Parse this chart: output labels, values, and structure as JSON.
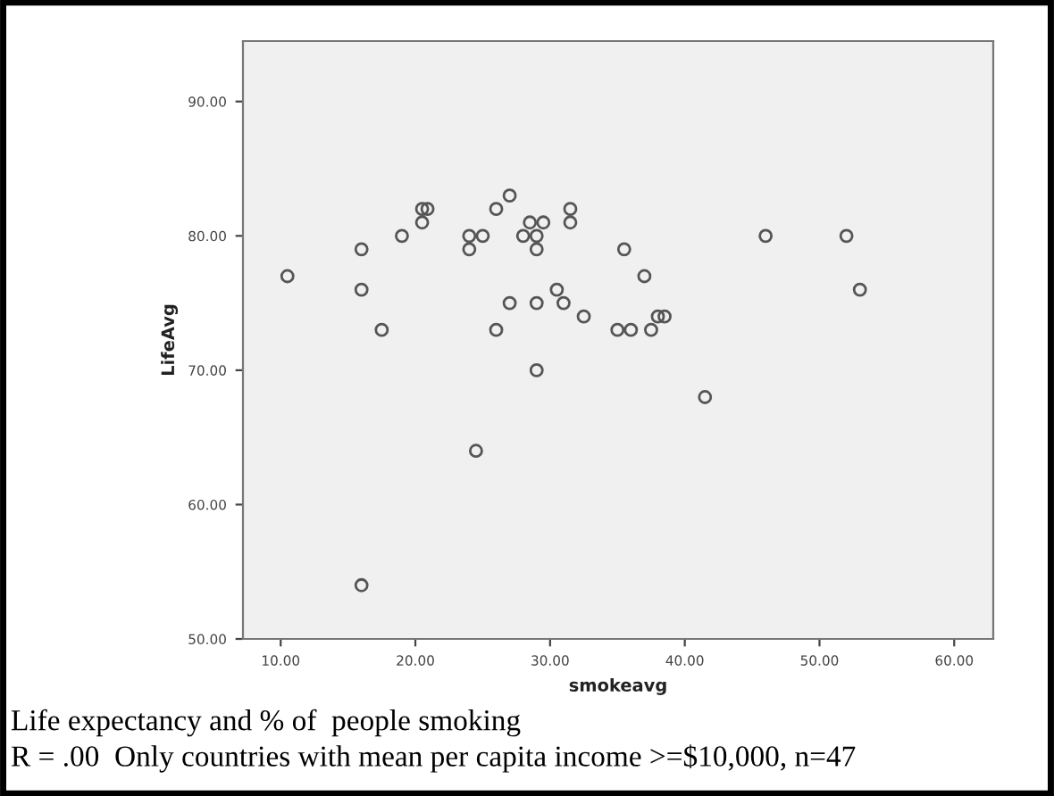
{
  "chart_data": {
    "type": "scatter",
    "xlabel": "smokeavg",
    "ylabel": "LifeAvg",
    "xlim": [
      7.2,
      62.9
    ],
    "xticks": [
      {
        "value": 10,
        "label": "10.00"
      },
      {
        "value": 20,
        "label": "20.00"
      },
      {
        "value": 30,
        "label": "30.00"
      },
      {
        "value": 40,
        "label": "40.00"
      },
      {
        "value": 50,
        "label": "50.00"
      },
      {
        "value": 60,
        "label": "60.00"
      }
    ],
    "ylim": [
      50,
      94.5
    ],
    "yticks": [
      {
        "value": 50,
        "label": "50.00"
      },
      {
        "value": 60,
        "label": "60.00"
      },
      {
        "value": 70,
        "label": "70.00"
      },
      {
        "value": 80,
        "label": "80.00"
      },
      {
        "value": 90,
        "label": "90.00"
      }
    ],
    "grid": false,
    "marker": "circle",
    "series": [
      {
        "color": "#555555",
        "x": [
          10.5,
          16,
          16,
          17.5,
          19,
          20.5,
          20.9,
          20.5,
          24,
          24,
          25,
          26,
          27,
          26,
          27,
          28,
          28.5,
          29,
          29.5,
          29,
          31.5,
          31.5,
          29,
          30.5,
          31,
          32.5,
          29,
          35.5,
          37,
          35,
          36,
          37.5,
          38,
          38.5,
          41.5,
          46,
          52,
          53,
          24.5,
          16
        ],
        "values": [
          77,
          79,
          76,
          73,
          80,
          82,
          82,
          81,
          80,
          79,
          80,
          82,
          83,
          73,
          75,
          80,
          81,
          80,
          81,
          79,
          82,
          81,
          75,
          76,
          75,
          74,
          70,
          79,
          77,
          73,
          73,
          73,
          74,
          74,
          68,
          80,
          80,
          76,
          64,
          54
        ]
      }
    ],
    "annotations": [
      "Life expectancy and % of  people smoking",
      "R = .00  Only countries with mean per capita income >=$10,000, n=47"
    ]
  }
}
